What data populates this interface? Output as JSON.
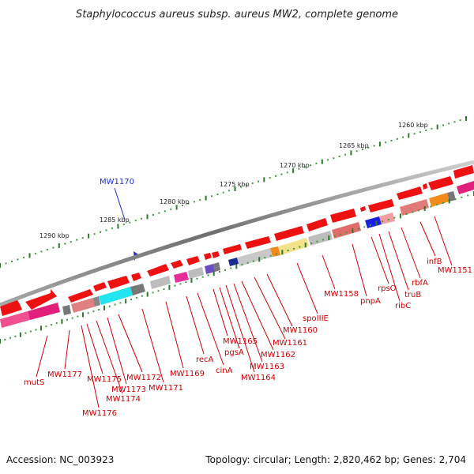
{
  "title": "Staphylococcus aureus subsp. aureus MW2, complete genome",
  "footer": {
    "accession": "Accession: NC_003923",
    "summary": "Topology: circular; Length: 2,820,462 bp; Genes: 2,704"
  },
  "scale_labels": [
    "1260 kbp",
    "1265 kbp",
    "1270 kbp",
    "1275 kbp",
    "1280 kbp",
    "1285 kbp",
    "1290 kbp"
  ],
  "selected_gene": "MW1170",
  "gene_labels": [
    "mutS",
    "MW1177",
    "MW1176",
    "MW1175",
    "MW1174",
    "MW1173",
    "MW1172",
    "MW1171",
    "MW1169",
    "recA",
    "cinA",
    "MW1165",
    "pgsA",
    "MW1164",
    "MW1163",
    "MW1162",
    "MW1161",
    "MW1160",
    "spoIIIE",
    "MW1158",
    "pnpA",
    "rpsO",
    "ribC",
    "truB",
    "rbfA",
    "infB",
    "MW1151"
  ],
  "colors": {
    "gene_red": "#ee0000",
    "label_red": "#cc0000",
    "selected_blue": "#1a2fcf",
    "tick_green": "#2a7a2a",
    "backbone_grey": "#777777"
  }
}
